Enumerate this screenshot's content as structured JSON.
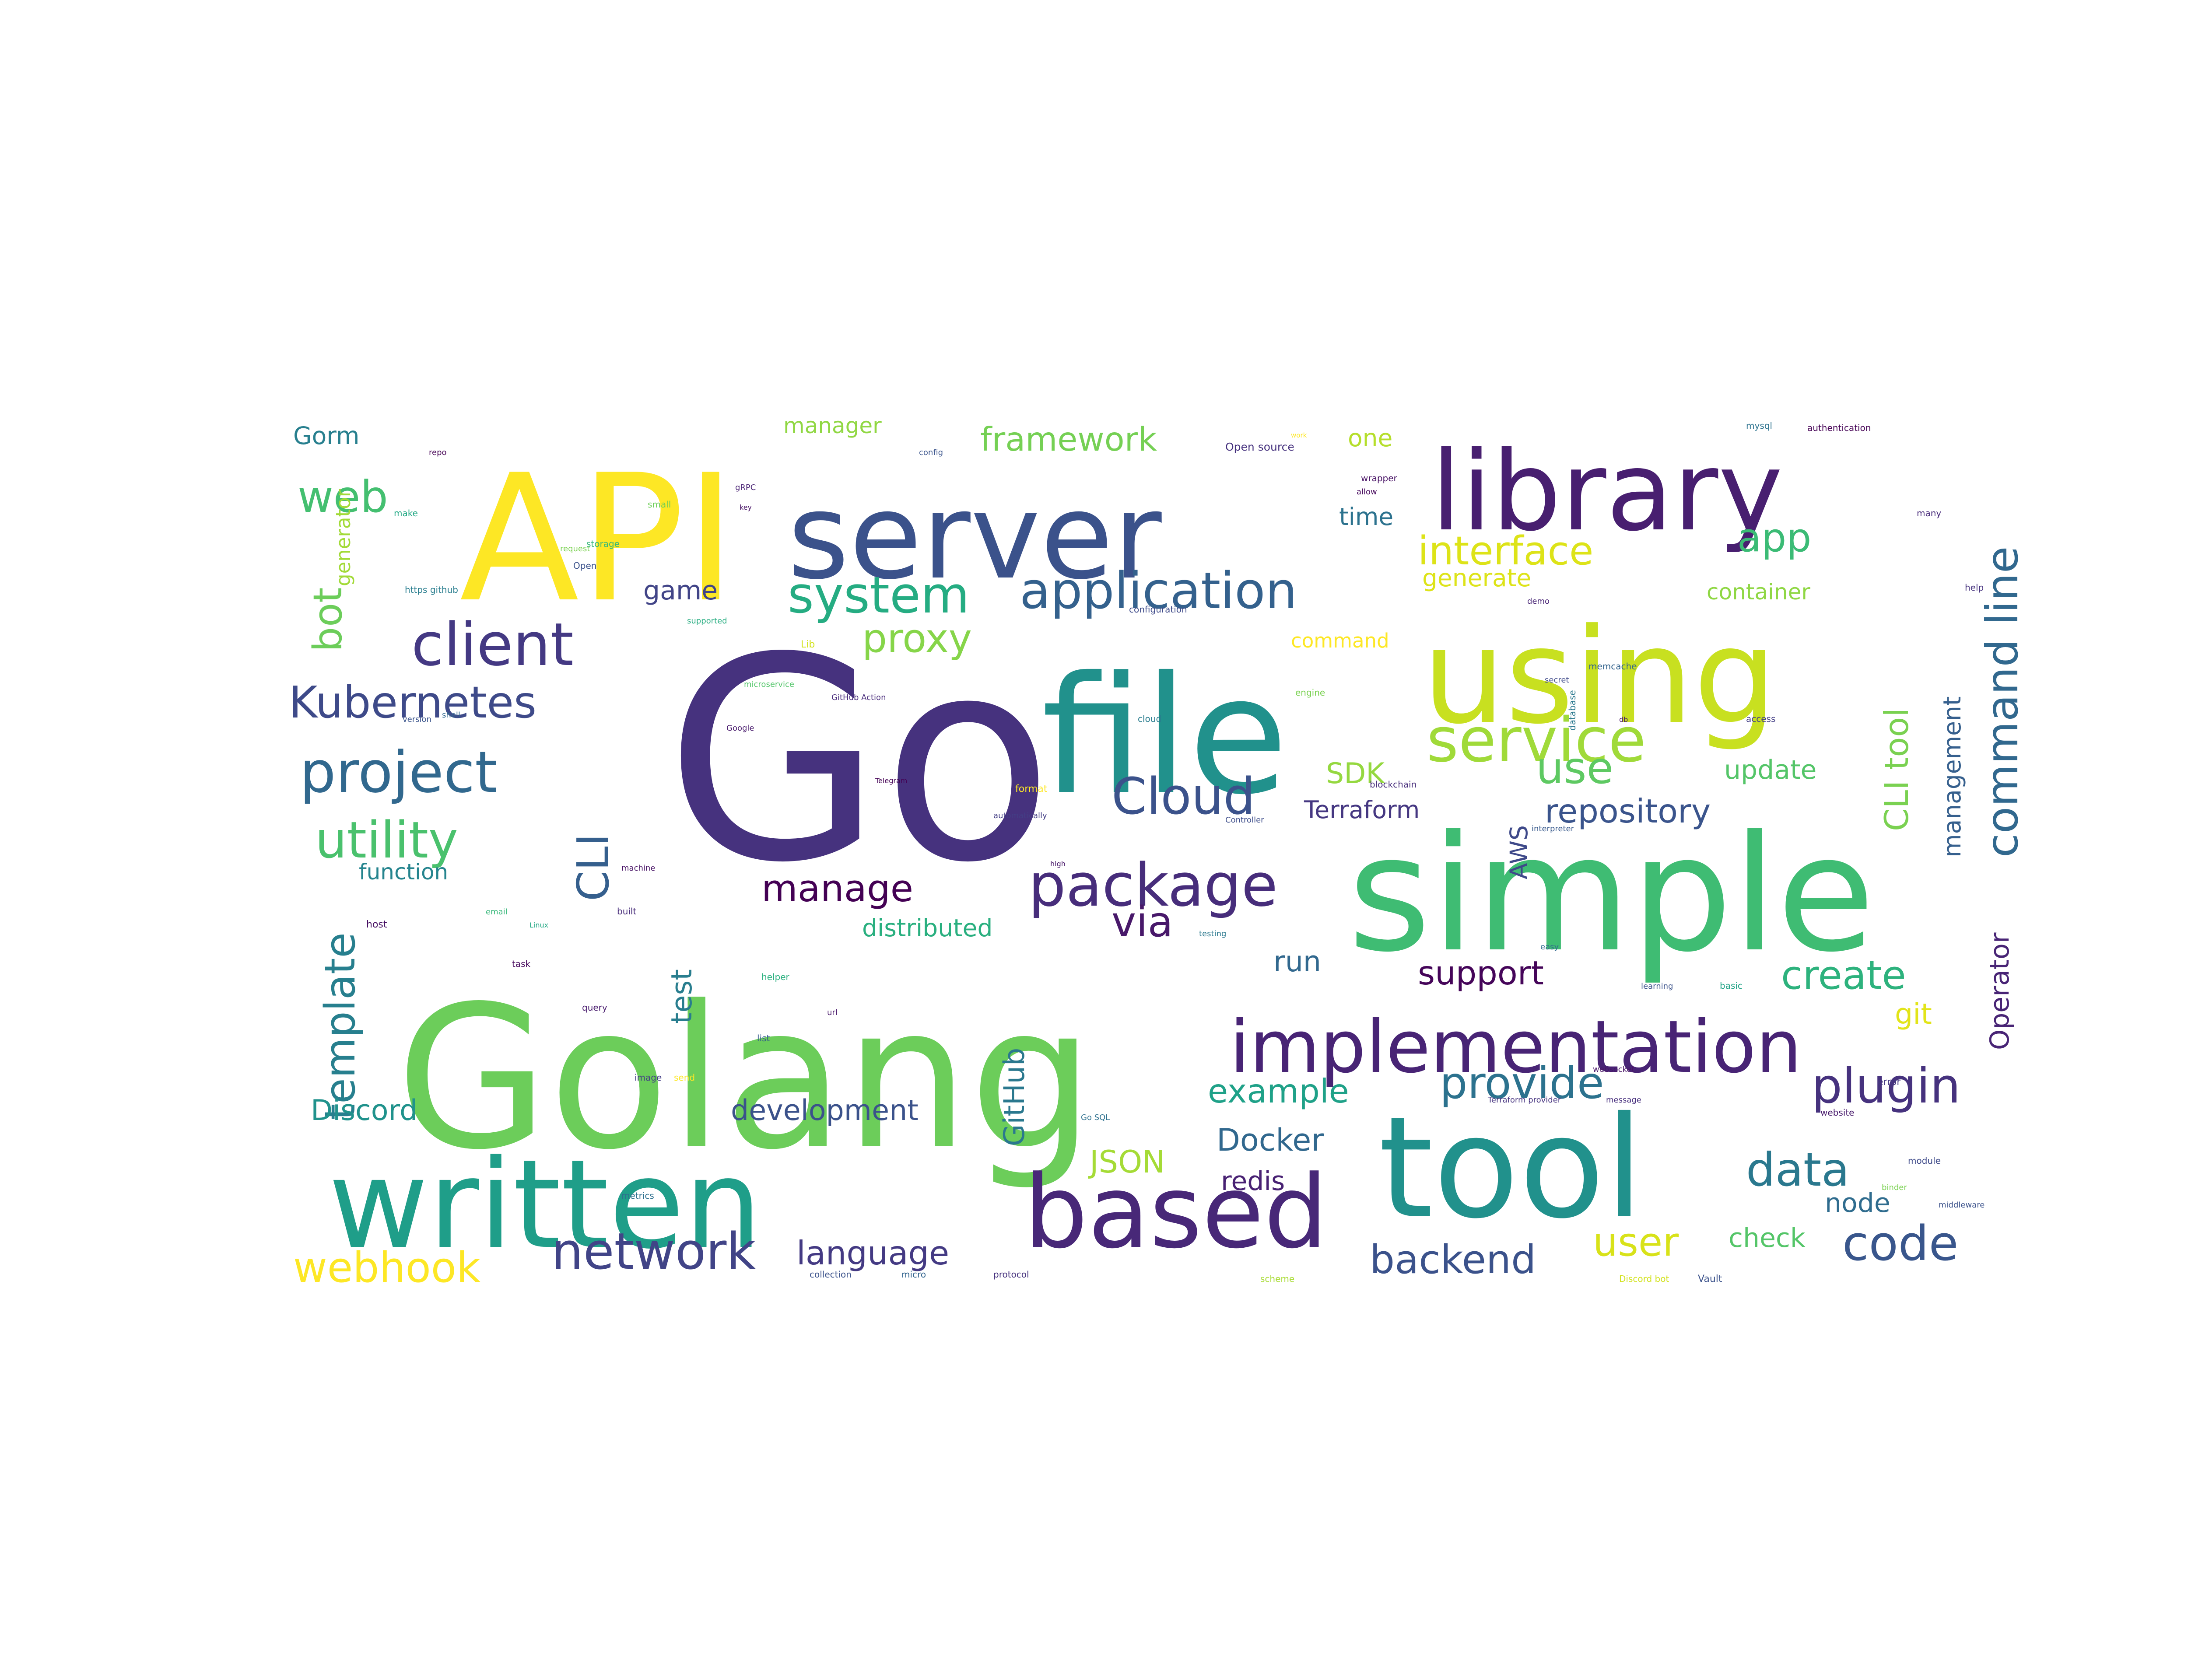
{
  "word_cloud": {
    "palette": "viridis",
    "background": "#ffffff",
    "words": [
      {
        "text": "Go",
        "color": "#46327e"
      },
      {
        "text": "Golang",
        "color": "#6ccd5a"
      },
      {
        "text": "simple",
        "color": "#3fbc73"
      },
      {
        "text": "file",
        "color": "#21918c"
      },
      {
        "text": "using",
        "color": "#c8e020"
      },
      {
        "text": "tool",
        "color": "#21918c"
      },
      {
        "text": "API",
        "color": "#fde725"
      },
      {
        "text": "server",
        "color": "#3b528b"
      },
      {
        "text": "library",
        "color": "#481f70"
      },
      {
        "text": "written",
        "color": "#1f9e89"
      },
      {
        "text": "based",
        "color": "#482878"
      },
      {
        "text": "implementation",
        "color": "#482475"
      },
      {
        "text": "package",
        "color": "#472d7b"
      },
      {
        "text": "project",
        "color": "#31688e"
      },
      {
        "text": "client",
        "color": "#443983"
      },
      {
        "text": "service",
        "color": "#a0da39"
      },
      {
        "text": "application",
        "color": "#34618d"
      },
      {
        "text": "Kubernetes",
        "color": "#3e4a89"
      },
      {
        "text": "system",
        "color": "#25ac82"
      },
      {
        "text": "utility",
        "color": "#4ac16d"
      },
      {
        "text": "Cloud",
        "color": "#3b528b"
      },
      {
        "text": "network",
        "color": "#414487"
      },
      {
        "text": "code",
        "color": "#39568c"
      },
      {
        "text": "plugin",
        "color": "#46327e"
      },
      {
        "text": "data",
        "color": "#2a788e"
      },
      {
        "text": "provide",
        "color": "#2c728e"
      },
      {
        "text": "user",
        "color": "#d8e219"
      },
      {
        "text": "create",
        "color": "#2db27d"
      },
      {
        "text": "language",
        "color": "#443a83"
      },
      {
        "text": "backend",
        "color": "#3b528b"
      },
      {
        "text": "webhook",
        "color": "#fde725"
      },
      {
        "text": "interface",
        "color": "#dde318"
      },
      {
        "text": "app",
        "color": "#3bbb75"
      },
      {
        "text": "proxy",
        "color": "#86d549"
      },
      {
        "text": "manage",
        "color": "#440154"
      },
      {
        "text": "use",
        "color": "#5ec962"
      },
      {
        "text": "support",
        "color": "#450559"
      },
      {
        "text": "via",
        "color": "#48186a"
      },
      {
        "text": "web",
        "color": "#44bf70"
      },
      {
        "text": "bot",
        "color": "#6ccd5a"
      },
      {
        "text": "CLI",
        "color": "#355f8d"
      },
      {
        "text": "CLI tool",
        "color": "#7ad151"
      },
      {
        "text": "command line",
        "color": "#31688e"
      },
      {
        "text": "template",
        "color": "#277f8e"
      },
      {
        "text": "Terraform",
        "color": "#453781"
      },
      {
        "text": "repository",
        "color": "#3a548c"
      },
      {
        "text": "example",
        "color": "#1fa188"
      },
      {
        "text": "JSON",
        "color": "#a5db36"
      },
      {
        "text": "Docker",
        "color": "#31688e"
      },
      {
        "text": "redis",
        "color": "#482173"
      },
      {
        "text": "development",
        "color": "#3b528b"
      },
      {
        "text": "Discord",
        "color": "#20928c"
      },
      {
        "text": "test",
        "color": "#287d8e"
      },
      {
        "text": "GitHub",
        "color": "#2a788e"
      },
      {
        "text": "SDK",
        "color": "#95d840"
      },
      {
        "text": "update",
        "color": "#54c568"
      },
      {
        "text": "check",
        "color": "#54c568"
      },
      {
        "text": "node",
        "color": "#2f6c8e"
      },
      {
        "text": "run",
        "color": "#31688e"
      },
      {
        "text": "Operator",
        "color": "#482475"
      },
      {
        "text": "management",
        "color": "#355f8d"
      },
      {
        "text": "git",
        "color": "#e2e418"
      },
      {
        "text": "AWS",
        "color": "#3e4989"
      },
      {
        "text": "framework",
        "color": "#75d054"
      },
      {
        "text": "manager",
        "color": "#90d743"
      },
      {
        "text": "one",
        "color": "#b5de2b"
      },
      {
        "text": "time",
        "color": "#2c728e"
      },
      {
        "text": "game",
        "color": "#414487"
      },
      {
        "text": "generate",
        "color": "#dde318"
      },
      {
        "text": "container",
        "color": "#8fd744"
      },
      {
        "text": "command",
        "color": "#fde725"
      },
      {
        "text": "function",
        "color": "#25848e"
      },
      {
        "text": "distributed",
        "color": "#29af7f"
      },
      {
        "text": "Gorm",
        "color": "#277f8e"
      },
      {
        "text": "generator",
        "color": "#a2da37"
      },
      {
        "text": "Open source",
        "color": "#46327e"
      },
      {
        "text": "authentication",
        "color": "#440154"
      },
      {
        "text": "wrapper",
        "color": "#471164"
      },
      {
        "text": "allow",
        "color": "#46085c"
      },
      {
        "text": "gRPC",
        "color": "#482173"
      },
      {
        "text": "key",
        "color": "#471365"
      },
      {
        "text": "small",
        "color": "#6ece58"
      },
      {
        "text": "config",
        "color": "#3a548c"
      },
      {
        "text": "repo",
        "color": "#440154"
      },
      {
        "text": "https github",
        "color": "#287d8e"
      },
      {
        "text": "storage",
        "color": "#35b779"
      },
      {
        "text": "request",
        "color": "#7ad151"
      },
      {
        "text": "supported",
        "color": "#27ad81"
      },
      {
        "text": "configuration",
        "color": "#3e4a89"
      },
      {
        "text": "GitHub Action",
        "color": "#472a7a"
      },
      {
        "text": "Telegram",
        "color": "#440154"
      },
      {
        "text": "Google",
        "color": "#481a6c"
      },
      {
        "text": "microservice",
        "color": "#52c569"
      },
      {
        "text": "automatically",
        "color": "#433e85"
      },
      {
        "text": "blockchain",
        "color": "#472d7b"
      },
      {
        "text": "Controller",
        "color": "#3d4d8a"
      },
      {
        "text": "interpreter",
        "color": "#38598c"
      },
      {
        "text": "machine",
        "color": "#471164"
      },
      {
        "text": "built",
        "color": "#472c7a"
      },
      {
        "text": "email",
        "color": "#35b779"
      },
      {
        "text": "Linux",
        "color": "#22a884"
      },
      {
        "text": "query",
        "color": "#481b6d"
      },
      {
        "text": "helper",
        "color": "#2ab07f"
      },
      {
        "text": "url",
        "color": "#48186a"
      },
      {
        "text": "list",
        "color": "#355e8d"
      },
      {
        "text": "image",
        "color": "#433e85"
      },
      {
        "text": "send",
        "color": "#fde725"
      },
      {
        "text": "websocket",
        "color": "#481467"
      },
      {
        "text": "message",
        "color": "#472f7d"
      },
      {
        "text": "Terraform provider",
        "color": "#46337f"
      },
      {
        "text": "learning",
        "color": "#3b528b"
      },
      {
        "text": "basic",
        "color": "#20a386"
      },
      {
        "text": "website",
        "color": "#481a6c"
      },
      {
        "text": "module",
        "color": "#3e4a89"
      },
      {
        "text": "binder",
        "color": "#7ad151"
      },
      {
        "text": "middleware",
        "color": "#3b528b"
      },
      {
        "text": "collection",
        "color": "#3b528b"
      },
      {
        "text": "micro",
        "color": "#32648e"
      },
      {
        "text": "protocol",
        "color": "#46327e"
      },
      {
        "text": "scheme",
        "color": "#a8db34"
      },
      {
        "text": "Discord bot",
        "color": "#d2e21b"
      },
      {
        "text": "Vault",
        "color": "#3b528b"
      },
      {
        "text": "help",
        "color": "#46327e"
      },
      {
        "text": "memcache",
        "color": "#33638d"
      },
      {
        "text": "mysql",
        "color": "#2c728e"
      },
      {
        "text": "metrics",
        "color": "#2d708e"
      },
      {
        "text": "task",
        "color": "#46085c"
      },
      {
        "text": "version",
        "color": "#3a548c"
      },
      {
        "text": "access",
        "color": "#433e85"
      },
      {
        "text": "testing",
        "color": "#2a788e"
      },
      {
        "text": "easy",
        "color": "#31688e"
      },
      {
        "text": "high",
        "color": "#481769"
      },
      {
        "text": "host",
        "color": "#471063"
      },
      {
        "text": "work",
        "color": "#fde725"
      },
      {
        "text": "Open",
        "color": "#3b528b"
      },
      {
        "text": "make",
        "color": "#22a884"
      },
      {
        "text": "shell",
        "color": "#31688e"
      },
      {
        "text": "demo",
        "color": "#482475"
      },
      {
        "text": "many",
        "color": "#472a7a"
      },
      {
        "text": "format",
        "color": "#fde725"
      },
      {
        "text": "engine",
        "color": "#7ad151"
      },
      {
        "text": "secret",
        "color": "#3e4989"
      },
      {
        "text": "Lib",
        "color": "#d2e21b"
      },
      {
        "text": "db",
        "color": "#481467"
      },
      {
        "text": "database",
        "color": "#2a788e"
      },
      {
        "text": "Go SQL",
        "color": "#2d708e"
      },
      {
        "text": "error",
        "color": "#453781"
      },
      {
        "text": "cloud",
        "color": "#287c8e"
      }
    ]
  }
}
